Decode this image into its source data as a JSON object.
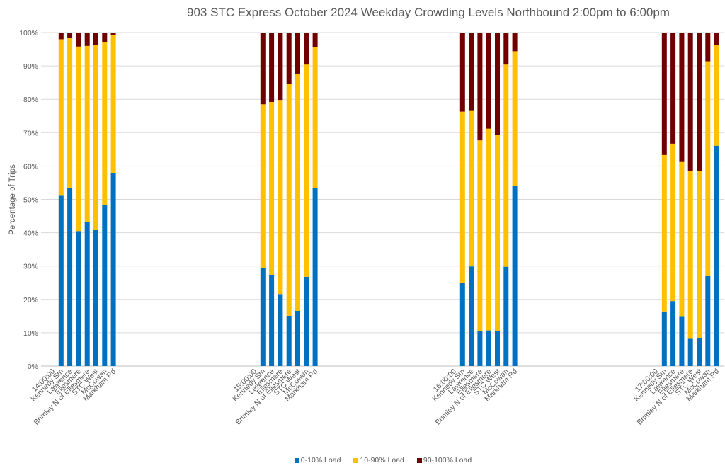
{
  "chart_data": {
    "type": "bar",
    "subtype": "stacked-percent",
    "title": "903 STC Express October 2024  Weekday Crowding Levels Northbound 2:00pm to 6:00pm",
    "xlabel": "",
    "ylabel": "Percentage of Trips",
    "ylim": [
      0,
      100
    ],
    "yticks": [
      "0%",
      "10%",
      "20%",
      "30%",
      "40%",
      "50%",
      "60%",
      "70%",
      "80%",
      "90%",
      "100%"
    ],
    "grid": true,
    "legend_position": "bottom",
    "stops": [
      "Kennedy Stn",
      "Lawrence",
      "Ellesmere",
      "Brimley N of Ellesmere",
      "STC West",
      "McCowan",
      "Markham Rd"
    ],
    "series": [
      {
        "name": "0-10% Load",
        "color": "#0070C0"
      },
      {
        "name": "10-90% Load",
        "color": "#FFC000"
      },
      {
        "name": "90-100% Load",
        "color": "#700000"
      }
    ],
    "groups": [
      {
        "time": "14:00:00",
        "values": {
          "0-10% Load": [
            51.1,
            53.5,
            40.5,
            43.3,
            40.8,
            48.2,
            57.8
          ],
          "10-90% Load": [
            46.9,
            44.9,
            55.3,
            52.7,
            55.4,
            49.0,
            41.5
          ],
          "90-100% Load": [
            2.0,
            1.6,
            4.2,
            4.0,
            3.8,
            2.8,
            0.7
          ]
        }
      },
      {
        "time": "15:00:00",
        "values": {
          "0-10% Load": [
            29.3,
            27.4,
            21.6,
            15.1,
            16.6,
            26.8,
            53.4
          ],
          "10-90% Load": [
            49.2,
            51.8,
            58.2,
            69.5,
            71.1,
            63.6,
            42.2
          ],
          "90-100% Load": [
            21.5,
            20.8,
            20.2,
            15.4,
            12.3,
            9.6,
            4.4
          ]
        }
      },
      {
        "time": "16:00:00",
        "values": {
          "0-10% Load": [
            25.0,
            29.9,
            10.6,
            10.7,
            10.6,
            29.8,
            54.0
          ],
          "10-90% Load": [
            51.3,
            46.6,
            57.1,
            60.5,
            58.7,
            60.6,
            40.4
          ],
          "90-100% Load": [
            23.7,
            23.5,
            32.3,
            28.8,
            30.7,
            9.6,
            5.6
          ]
        }
      },
      {
        "time": "17:00:00",
        "values": {
          "0-10% Load": [
            16.4,
            19.5,
            15.0,
            8.2,
            8.4,
            27.0,
            66.1
          ],
          "10-90% Load": [
            46.9,
            47.2,
            46.2,
            50.4,
            50.1,
            64.4,
            30.1
          ],
          "90-100% Load": [
            36.7,
            33.3,
            38.8,
            41.4,
            41.5,
            8.6,
            3.8
          ]
        }
      }
    ]
  }
}
